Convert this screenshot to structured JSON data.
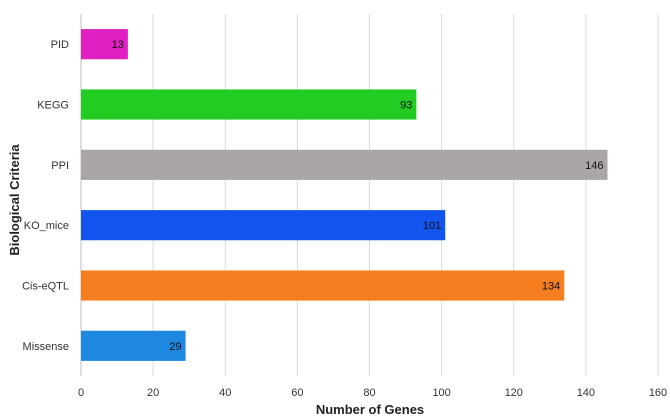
{
  "chart_data": {
    "type": "bar",
    "orientation": "horizontal",
    "categories": [
      "PID",
      "KEGG",
      "PPI",
      "KO_mice",
      "Cis-eQTL",
      "Missense"
    ],
    "values": [
      13,
      93,
      146,
      101,
      134,
      29
    ],
    "colors": [
      "#e020c0",
      "#22cc22",
      "#aaa6a6",
      "#1155ee",
      "#f57f20",
      "#1e88e0"
    ],
    "title": "",
    "xlabel": "Number of Genes",
    "ylabel": "Biological Criteria",
    "xlim": [
      0,
      160
    ],
    "xticks": [
      0,
      20,
      40,
      60,
      80,
      100,
      120,
      140,
      160
    ],
    "grid": true,
    "legend": "none"
  }
}
